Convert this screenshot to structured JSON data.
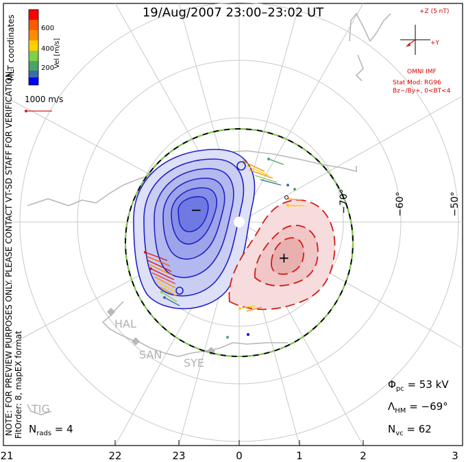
{
  "title": "19/Aug/2007 23:00–23:02 UT",
  "coords_label": "MLT coordinates",
  "color_bar": {
    "label": "Vel [m/s]",
    "ticks": [
      "600",
      "400",
      "200"
    ],
    "colors": [
      "#ff0000",
      "#ff8c00",
      "#ffd000",
      "#7fd04a",
      "#4aa36a",
      "#3a6fa8",
      "#0000ff"
    ]
  },
  "vector_scale": "1000 m/s",
  "preview_note": "NOTE: FOR PREVIEW PURPOSES ONLY. PLEASE CONTACT VT-SD STAFF FOR VERIFICATION.",
  "fit_order": "FitOrder: 8, mapEX format",
  "imf": {
    "z_label": "+Z (5 nT)",
    "y_label": "+Y",
    "source": "OMNI IMF",
    "model": "Stat Mod: RG96",
    "condition": "Bz−/By+, 0<BT<4"
  },
  "latitude_labels": [
    "−70°",
    "−60°",
    "−50°"
  ],
  "mlt_ticks": [
    "21",
    "22",
    "23",
    "0",
    "1",
    "2",
    "3"
  ],
  "radar_sites": [
    "HAL",
    "SAN",
    "SYE",
    "TIG"
  ],
  "stats": {
    "phi_pc": "53 kV",
    "lambda_hm": "−69°",
    "n_vc": "62",
    "n_rads": "4"
  },
  "markers": {
    "min": "−",
    "max": "+"
  },
  "colors": {
    "negative_cell": "#2020c8",
    "positive_cell": "#d41a1a",
    "boundary_green": "#7fd04a",
    "land": "#b8b8b8"
  }
}
